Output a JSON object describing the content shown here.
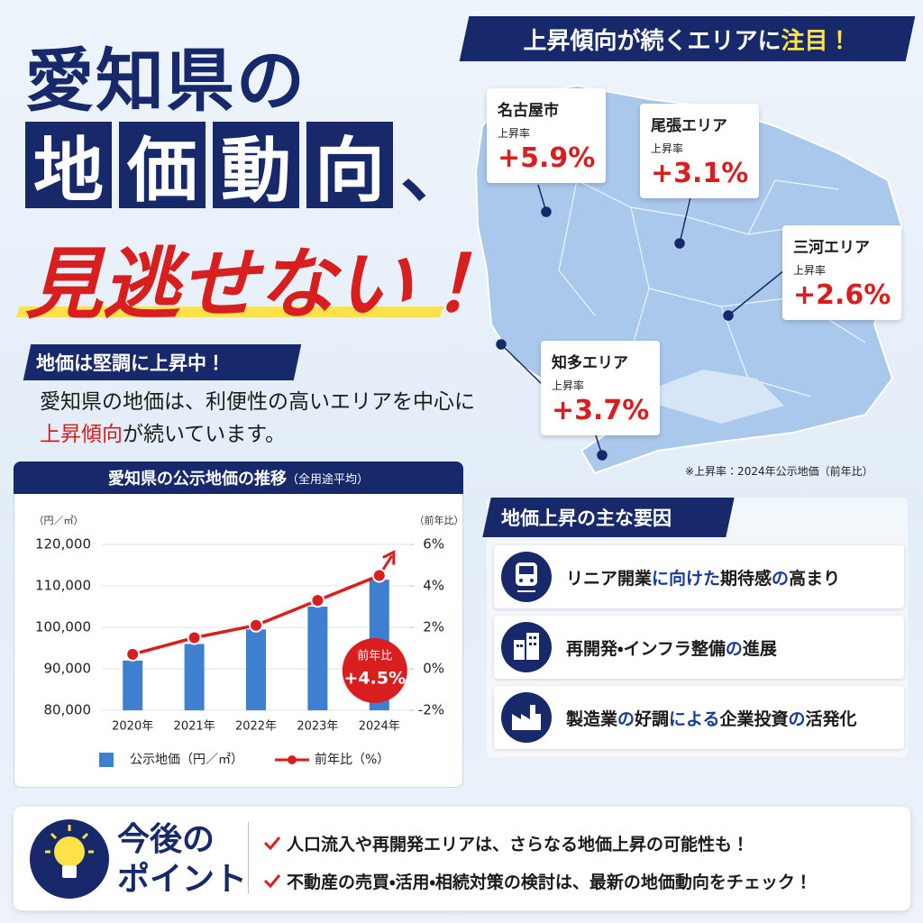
{
  "header": {
    "line1": "愛知県の",
    "line2": [
      "地",
      "価",
      "動",
      "向"
    ],
    "line2_end": "、",
    "line3": "見逃せない！"
  },
  "map": {
    "banner": [
      {
        "text": "上昇傾向が続くエリアに",
        "color": "#ffffff"
      },
      {
        "text": "注目！",
        "color": "#ffe24a"
      }
    ],
    "areas": [
      {
        "name": "名古屋市",
        "rate_label": "上昇率",
        "rate": "+5.9%"
      },
      {
        "name": "尾張エリア",
        "rate_label": "上昇率",
        "rate": "+3.1%"
      },
      {
        "name": "三河エリア",
        "rate_label": "上昇率",
        "rate": "+2.6%"
      },
      {
        "name": "知多エリア",
        "rate_label": "上昇率",
        "rate": "+3.7%"
      }
    ],
    "note": "※上昇率：2024年公示地価（前年比）"
  },
  "intro": {
    "heading": "地価は堅調に上昇中！",
    "line1": "愛知県の地価は、利便性の高いエリアを中心に",
    "line2": [
      {
        "text": "上昇傾向",
        "color": "#d81e1e"
      },
      {
        "text": "が続いています。",
        "color": "#1b1b1b"
      }
    ]
  },
  "chart_data": {
    "type": "bar",
    "title": "愛知県の公示地価の推移",
    "subtitle": "（全用途平均）",
    "y_label": "（円／㎡）",
    "y2_label": "（前年比）",
    "categories": [
      "2020年",
      "2021年",
      "2022年",
      "2023年",
      "2024年"
    ],
    "series": [
      {
        "name": "公示地価（円／㎡）",
        "type": "bar",
        "color": "#3f7fd0",
        "values": [
          92000,
          96000,
          99500,
          105000,
          111500
        ]
      },
      {
        "name": "前年比（%）",
        "type": "line",
        "axis": "y2",
        "color": "#d81e1e",
        "values": [
          0.7,
          1.5,
          2.1,
          3.3,
          4.5
        ]
      }
    ],
    "ylim": [
      80000,
      120000
    ],
    "yticks": [
      {
        "value": 80000,
        "label": "80,000"
      },
      {
        "value": 90000,
        "label": "90,000"
      },
      {
        "value": 100000,
        "label": "100,000"
      },
      {
        "value": 110000,
        "label": "110,000"
      },
      {
        "value": 120000,
        "label": "120,000"
      }
    ],
    "y2lim": [
      -2,
      6
    ],
    "y2ticks": [
      {
        "value": -2,
        "label": "-2%"
      },
      {
        "value": 0,
        "label": "0%"
      },
      {
        "value": 2,
        "label": "2%"
      },
      {
        "value": 4,
        "label": "4%"
      },
      {
        "value": 6,
        "label": "6%"
      }
    ],
    "grid": true,
    "callout": {
      "title": "前年比",
      "text": "+4.5%"
    }
  },
  "factors": {
    "heading": "地価上昇の主な要因",
    "items": [
      [
        {
          "text": "リニア開業",
          "color": "#1b1b1b"
        },
        {
          "text": "に向けた",
          "color": "#1a3a9a"
        },
        {
          "text": "期待感",
          "color": "#1b1b1b"
        },
        {
          "text": "の",
          "color": "#1a3a9a"
        },
        {
          "text": "高まり",
          "color": "#1b1b1b"
        }
      ],
      [
        {
          "text": "再開発・インフラ整備",
          "color": "#1b1b1b"
        },
        {
          "text": "の",
          "color": "#1a3a9a"
        },
        {
          "text": "進展",
          "color": "#1b1b1b"
        }
      ],
      [
        {
          "text": "製造業",
          "color": "#1b1b1b"
        },
        {
          "text": "の",
          "color": "#1a3a9a"
        },
        {
          "text": "好調",
          "color": "#1b1b1b"
        },
        {
          "text": "による",
          "color": "#1a3a9a"
        },
        {
          "text": "企業投資",
          "color": "#1b1b1b"
        },
        {
          "text": "の",
          "color": "#1a3a9a"
        },
        {
          "text": "活発化",
          "color": "#1b1b1b"
        }
      ]
    ]
  },
  "points": {
    "heading_line1": "今後の",
    "heading_line2": "ポイント",
    "items": [
      "人口流入や再開発エリアは、さらなる地価上昇の可能性も！",
      "不動産の売買・活用・相続対策の検討は、最新の地価動向をチェック！"
    ]
  }
}
